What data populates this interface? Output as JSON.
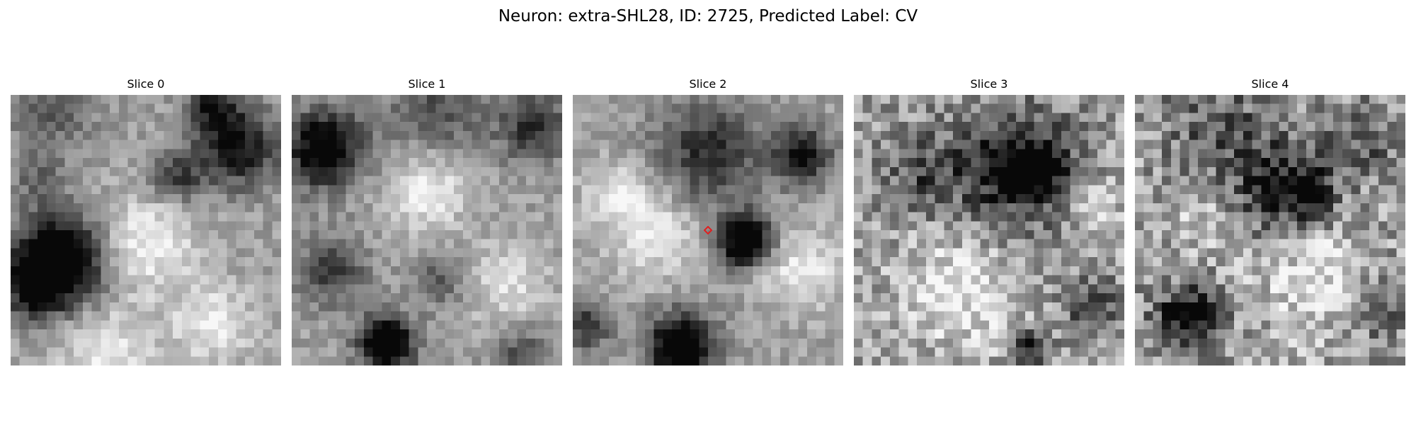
{
  "figure": {
    "title": "Neuron: extra-SHL28, ID: 2725, Predicted Label: CV"
  },
  "slices": [
    {
      "label": "Slice 0",
      "blobs": [
        [
          0.18,
          0.62,
          0.17,
          -0.9
        ],
        [
          0.08,
          0.72,
          0.1,
          -0.4
        ],
        [
          0.85,
          0.2,
          0.14,
          -0.55
        ],
        [
          0.62,
          0.3,
          0.1,
          -0.4
        ],
        [
          0.75,
          0.05,
          0.1,
          -0.5
        ],
        [
          0.15,
          0.05,
          0.15,
          -0.25
        ],
        [
          0.5,
          0.55,
          0.18,
          0.35
        ],
        [
          0.75,
          0.85,
          0.15,
          0.3
        ],
        [
          0.35,
          0.95,
          0.18,
          0.3
        ],
        [
          0.1,
          0.3,
          0.1,
          -0.2
        ]
      ]
    },
    {
      "label": "Slice 1",
      "blobs": [
        [
          0.12,
          0.2,
          0.14,
          -0.75
        ],
        [
          0.35,
          0.92,
          0.1,
          -0.85
        ],
        [
          0.55,
          0.68,
          0.1,
          -0.25
        ],
        [
          0.15,
          0.65,
          0.12,
          -0.4
        ],
        [
          0.9,
          0.12,
          0.12,
          -0.45
        ],
        [
          0.85,
          0.95,
          0.1,
          -0.3
        ],
        [
          0.5,
          0.35,
          0.15,
          0.35
        ],
        [
          0.8,
          0.7,
          0.15,
          0.25
        ],
        [
          0.55,
          0.05,
          0.2,
          -0.3
        ]
      ]
    },
    {
      "label": "Slice 2",
      "blobs": [
        [
          0.64,
          0.54,
          0.09,
          -0.95
        ],
        [
          0.4,
          0.93,
          0.12,
          -0.85
        ],
        [
          0.85,
          0.22,
          0.1,
          -0.6
        ],
        [
          0.5,
          0.22,
          0.2,
          -0.45
        ],
        [
          0.05,
          0.85,
          0.08,
          -0.5
        ],
        [
          0.3,
          0.5,
          0.18,
          0.3
        ],
        [
          0.85,
          0.65,
          0.15,
          0.3
        ],
        [
          0.15,
          0.35,
          0.12,
          0.2
        ]
      ],
      "marker": {
        "color": "#e02020",
        "x": 0.5,
        "y": 0.5
      }
    },
    {
      "label": "Slice 3",
      "blobs": [
        [
          0.6,
          0.27,
          0.22,
          -0.6
        ],
        [
          0.68,
          0.28,
          0.08,
          -0.5
        ],
        [
          0.25,
          0.3,
          0.15,
          -0.3
        ],
        [
          0.88,
          0.78,
          0.1,
          -0.4
        ],
        [
          0.66,
          0.94,
          0.06,
          -0.6
        ],
        [
          0.4,
          0.72,
          0.22,
          0.3
        ],
        [
          0.9,
          0.4,
          0.12,
          0.2
        ]
      ],
      "noise": 0.45
    },
    {
      "label": "Slice 4",
      "blobs": [
        [
          0.2,
          0.83,
          0.12,
          -0.65
        ],
        [
          0.55,
          0.34,
          0.18,
          -0.55
        ],
        [
          0.65,
          0.36,
          0.06,
          -0.5
        ],
        [
          0.3,
          0.12,
          0.18,
          -0.3
        ],
        [
          0.85,
          0.15,
          0.12,
          -0.3
        ],
        [
          0.65,
          0.68,
          0.2,
          0.3
        ],
        [
          0.25,
          0.45,
          0.12,
          0.2
        ],
        [
          0.9,
          0.8,
          0.12,
          -0.2
        ]
      ],
      "noise": 0.5
    }
  ]
}
